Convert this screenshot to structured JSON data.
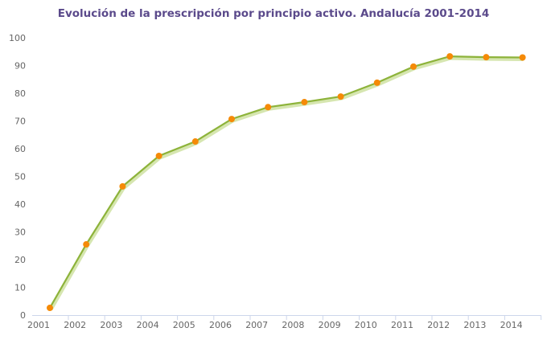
{
  "chart_data": {
    "type": "line",
    "title": "Evolución de la prescripción por principio activo. Andalucía 2001-2014",
    "xlabel": "",
    "ylabel": "",
    "categories": [
      "2001",
      "2002",
      "2003",
      "2004",
      "2005",
      "2006",
      "2007",
      "2008",
      "2009",
      "2010",
      "2011",
      "2012",
      "2013",
      "2014"
    ],
    "values": [
      2.6,
      25.5,
      46.4,
      57.4,
      62.6,
      70.7,
      75.0,
      76.8,
      78.8,
      83.8,
      89.6,
      93.3,
      93.0,
      92.9
    ],
    "ylim": [
      0,
      100
    ],
    "yticks": [
      0,
      10,
      20,
      30,
      40,
      50,
      60,
      70,
      80,
      90,
      100
    ],
    "grid": false,
    "legend": "none",
    "colors": {
      "line": "#8db33a",
      "marker": "#f58a07",
      "title": "#5b4a8b",
      "axis": "#ccd6eb"
    }
  }
}
